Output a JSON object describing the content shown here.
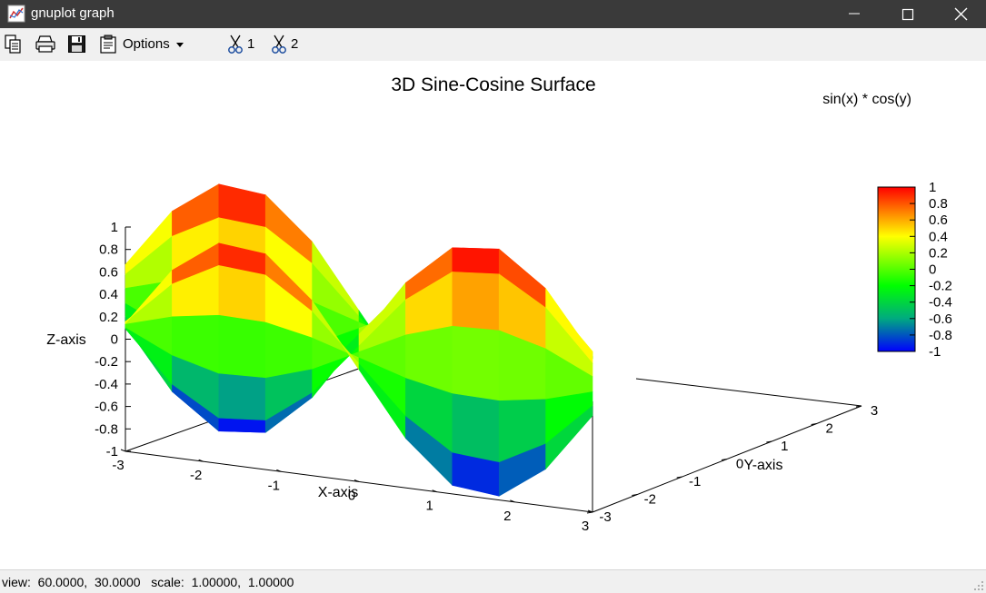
{
  "window": {
    "title": "gnuplot graph",
    "controls": [
      "minimize",
      "maximize",
      "close"
    ],
    "titlebar_color": "#3a3a3a"
  },
  "toolbar": {
    "icons": [
      "copy-icon",
      "print-icon",
      "save-icon",
      "clipboard-icon"
    ],
    "options_label": "Options",
    "plot_toggles": [
      {
        "icon": "scissors-icon",
        "label": "1"
      },
      {
        "icon": "scissors-icon",
        "label": "2"
      }
    ]
  },
  "status": {
    "text": "view:  60.0000,  30.0000   scale:  1.00000,  1.00000"
  },
  "chart_data": {
    "type": "surface",
    "title": "3D Sine-Cosine Surface",
    "key": "sin(x) * cos(y)",
    "xlabel": "X-axis",
    "ylabel": "Y-axis",
    "zlabel": "Z-axis",
    "xlim": [
      -3,
      3
    ],
    "ylim": [
      -3,
      3
    ],
    "zlim": [
      -1,
      1
    ],
    "view": {
      "rot_x": 60,
      "rot_z": 30
    },
    "x_ticks": [
      "-3",
      "-2",
      "-1",
      "0",
      "1",
      "2",
      "3"
    ],
    "y_ticks": [
      "-3",
      "-2",
      "-1",
      "0",
      "1",
      "2",
      "3"
    ],
    "z_ticks": [
      "1",
      "0.8",
      "0.6",
      "0.4",
      "0.2",
      "0",
      "-0.2",
      "-0.4",
      "-0.6",
      "-0.8",
      "-1"
    ],
    "colorbar_ticks": [
      "1",
      "0.8",
      "0.6",
      "0.4",
      "0.2",
      "0",
      "-0.2",
      "-0.4",
      "-0.6",
      "-0.8",
      "-1"
    ],
    "grid_n": 10,
    "palette": [
      "#0000ff",
      "#00aa80",
      "#00ff00",
      "#ffff00",
      "#ff8000",
      "#ff0000"
    ]
  }
}
